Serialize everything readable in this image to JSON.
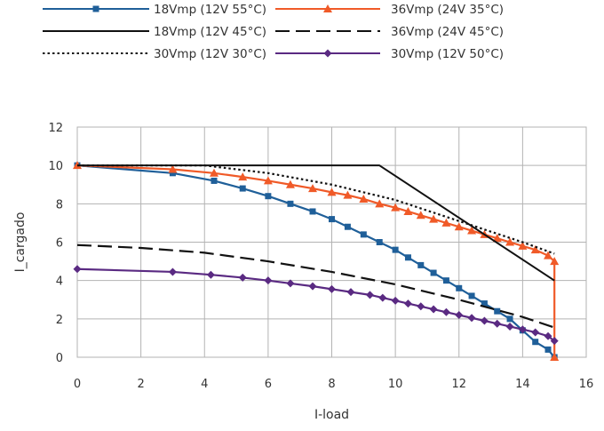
{
  "chart_data": {
    "type": "line",
    "title": "",
    "xlabel": "I-load",
    "ylabel": "I_cargado",
    "xlim": [
      0,
      16
    ],
    "ylim": [
      0,
      12
    ],
    "xticks": [
      0,
      2,
      4,
      6,
      8,
      10,
      12,
      14,
      16
    ],
    "yticks": [
      0,
      2,
      4,
      6,
      8,
      10,
      12
    ],
    "grid": true,
    "legend_position": "top",
    "series": [
      {
        "name": "18Vmp (12V 55°C)",
        "color": "#1f5f99",
        "line_style": "solid",
        "marker": "square",
        "x": [
          0,
          3,
          4.3,
          5.2,
          6,
          6.7,
          7.4,
          8,
          8.5,
          9.0,
          9.5,
          10,
          10.4,
          10.8,
          11.2,
          11.6,
          12,
          12.4,
          12.8,
          13.2,
          13.6,
          14,
          14.4,
          14.8,
          15
        ],
        "y": [
          10,
          9.6,
          9.2,
          8.8,
          8.4,
          8.0,
          7.6,
          7.2,
          6.8,
          6.4,
          6.0,
          5.6,
          5.2,
          4.8,
          4.4,
          4.0,
          3.6,
          3.2,
          2.8,
          2.4,
          2.0,
          1.4,
          0.8,
          0.4,
          0
        ]
      },
      {
        "name": "36Vmp (24V 35°C)",
        "color": "#f05a28",
        "line_style": "solid",
        "marker": "triangle",
        "x": [
          0,
          3,
          4.3,
          5.2,
          6,
          6.7,
          7.4,
          8,
          8.5,
          9.0,
          9.5,
          10,
          10.4,
          10.8,
          11.2,
          11.6,
          12,
          12.4,
          12.8,
          13.2,
          13.6,
          14,
          14.4,
          14.8,
          15,
          15
        ],
        "y": [
          10,
          9.8,
          9.6,
          9.4,
          9.2,
          9.0,
          8.8,
          8.6,
          8.45,
          8.25,
          8.0,
          7.8,
          7.6,
          7.4,
          7.2,
          7.0,
          6.8,
          6.6,
          6.4,
          6.2,
          6.0,
          5.8,
          5.6,
          5.3,
          5.0,
          0
        ]
      },
      {
        "name": "18Vmp (12V 45°C)",
        "color": "#111111",
        "line_style": "solid",
        "marker": "none",
        "x": [
          0,
          9.5,
          15
        ],
        "y": [
          10,
          10,
          4.0
        ]
      },
      {
        "name": "36Vmp (24V 45°C)",
        "color": "#111111",
        "line_style": "longdash",
        "marker": "none",
        "x": [
          0,
          2,
          4,
          6,
          8,
          10,
          12,
          14,
          15
        ],
        "y": [
          5.85,
          5.7,
          5.45,
          5.0,
          4.45,
          3.8,
          3.0,
          2.1,
          1.55
        ]
      },
      {
        "name": "30Vmp (12V 30°C)",
        "color": "#111111",
        "line_style": "dotted",
        "marker": "none",
        "x": [
          0,
          4,
          6,
          8,
          10,
          12,
          14,
          15
        ],
        "y": [
          10,
          10,
          9.6,
          9.0,
          8.2,
          7.1,
          6.0,
          5.4
        ]
      },
      {
        "name": "30Vmp (12V 50°C)",
        "color": "#5a2a82",
        "line_style": "solid",
        "marker": "diamond",
        "x": [
          0,
          3,
          4.2,
          5.2,
          6,
          6.7,
          7.4,
          8,
          8.6,
          9.2,
          9.6,
          10,
          10.4,
          10.8,
          11.2,
          11.6,
          12,
          12.4,
          12.8,
          13.2,
          13.6,
          14,
          14.4,
          14.8,
          15
        ],
        "y": [
          4.6,
          4.45,
          4.3,
          4.15,
          4.0,
          3.85,
          3.7,
          3.55,
          3.4,
          3.25,
          3.1,
          2.95,
          2.8,
          2.65,
          2.5,
          2.35,
          2.2,
          2.05,
          1.9,
          1.75,
          1.6,
          1.45,
          1.3,
          1.1,
          0.85
        ]
      }
    ]
  }
}
